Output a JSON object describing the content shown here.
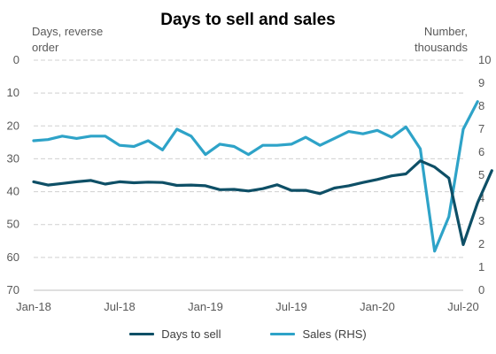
{
  "chart_data": {
    "type": "line",
    "title": "Days to sell and sales",
    "left_axis_label": "Days, reverse\norder",
    "right_axis_label": "Number,\nthousands",
    "left_axis": {
      "range": [
        0,
        70
      ],
      "reversed": true,
      "ticks": [
        0,
        10,
        20,
        30,
        40,
        50,
        60,
        70
      ]
    },
    "right_axis": {
      "range": [
        0,
        10
      ],
      "ticks": [
        0,
        1,
        2,
        3,
        4,
        5,
        6,
        7,
        8,
        9,
        10
      ]
    },
    "x_axis": {
      "start": "2018-01",
      "tick_labels": [
        {
          "month": "2018-01",
          "label": "Jan-18"
        },
        {
          "month": "2018-07",
          "label": "Jul-18"
        },
        {
          "month": "2019-01",
          "label": "Jan-19"
        },
        {
          "month": "2019-07",
          "label": "Jul-19"
        },
        {
          "month": "2020-01",
          "label": "Jan-20"
        },
        {
          "month": "2020-07",
          "label": "Jul-20"
        }
      ]
    },
    "grid": {
      "horizontal": true,
      "style": "dashed"
    },
    "legend_position": "bottom",
    "series": [
      {
        "name": "Days to sell",
        "axis": "left",
        "color": "#0e4f66",
        "values": [
          37,
          38,
          37.5,
          37,
          36.6,
          37.7,
          37,
          37.3,
          37.1,
          37.2,
          38.1,
          38,
          38.2,
          39.4,
          39.3,
          39.8,
          39.1,
          37.9,
          39.6,
          39.6,
          40.6,
          38.9,
          38.2,
          37.2,
          36.3,
          35.2,
          34.6,
          30.6,
          32.5,
          35.9,
          56.1,
          43.4,
          33.6
        ]
      },
      {
        "name": "Sales (RHS)",
        "axis": "right",
        "color": "#2ea3c8",
        "values": [
          6.5,
          6.55,
          6.7,
          6.6,
          6.7,
          6.7,
          6.3,
          6.25,
          6.5,
          6.1,
          7.0,
          6.7,
          5.9,
          6.35,
          6.25,
          5.9,
          6.3,
          6.3,
          6.35,
          6.65,
          6.3,
          6.6,
          6.9,
          6.8,
          6.95,
          6.65,
          7.1,
          6.15,
          1.7,
          3.2,
          7.0,
          8.2
        ]
      }
    ]
  },
  "legend": [
    {
      "label": "Days to sell",
      "color": "#0e4f66"
    },
    {
      "label": "Sales (RHS)",
      "color": "#2ea3c8"
    }
  ]
}
